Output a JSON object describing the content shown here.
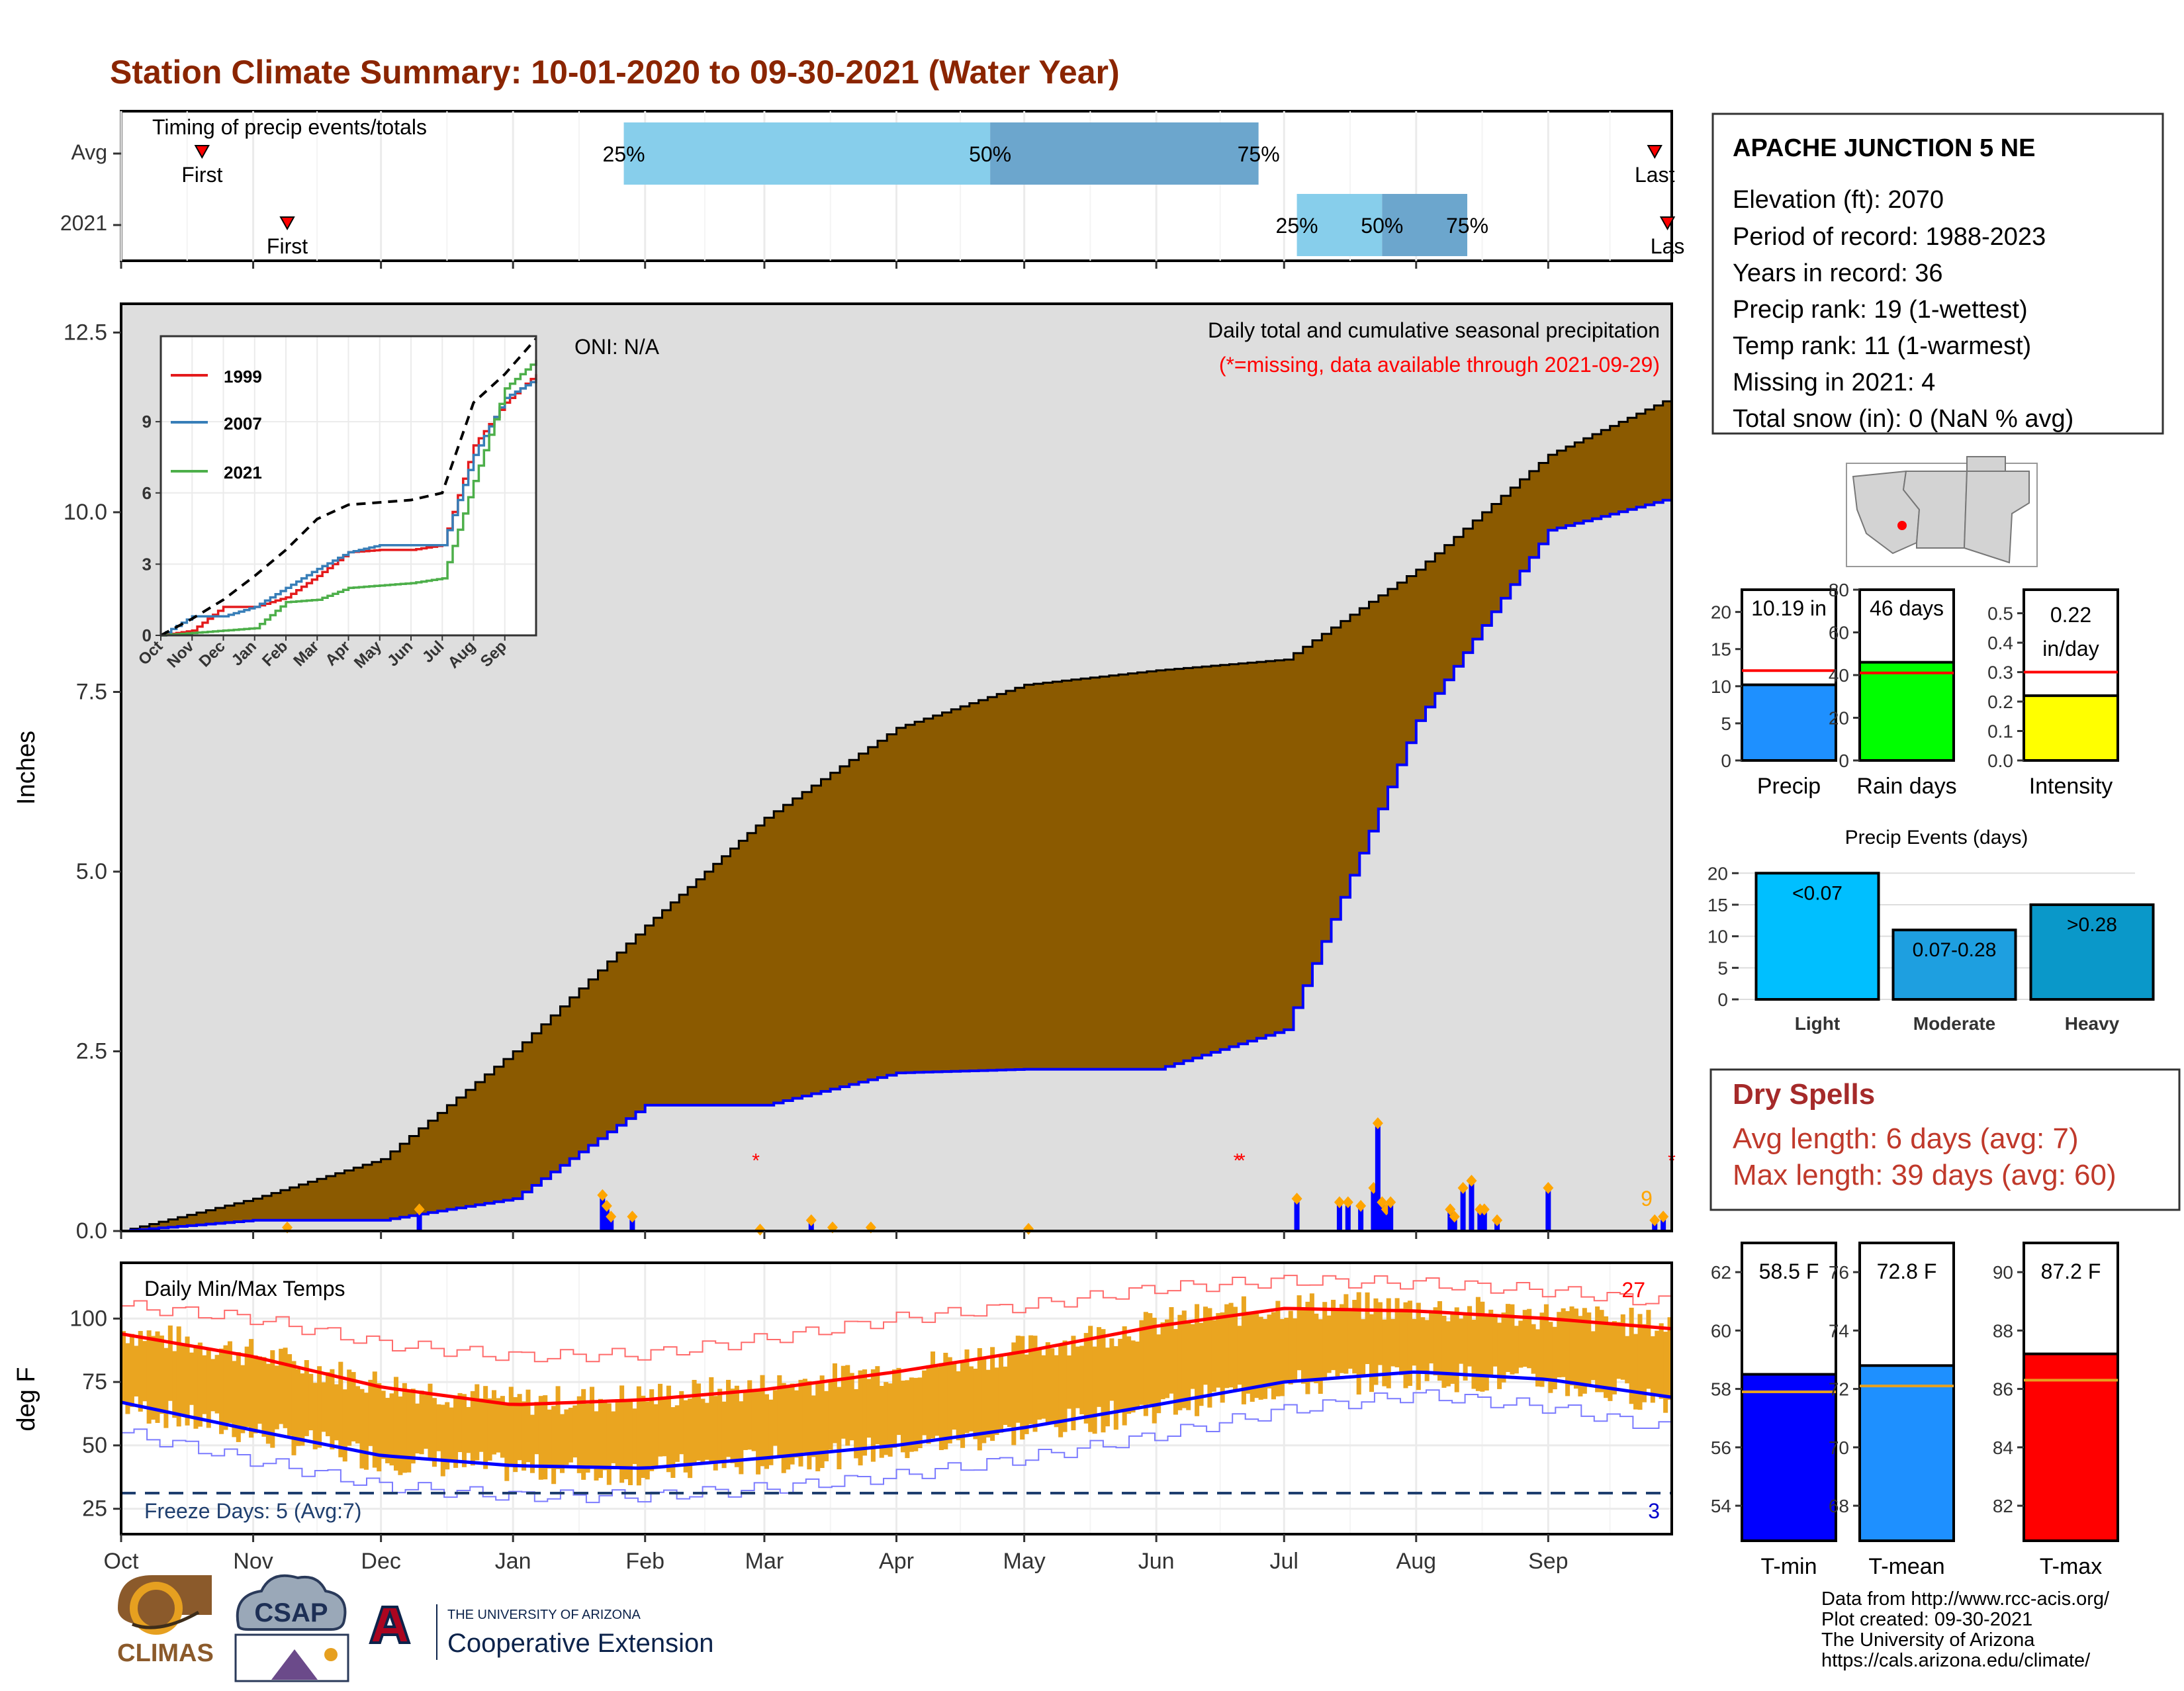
{
  "title": "Station Climate Summary: 10-01-2020 to 09-30-2021 (Water Year)",
  "timing": {
    "label": "Timing of precip events/totals",
    "rows": [
      {
        "name": "Avg",
        "first_label": "First",
        "last_label": "Last",
        "first": "2020-10-20",
        "last": "2021-09-26",
        "p25": "2021-01-27",
        "p50": "2021-04-23",
        "p75": "2021-06-25"
      },
      {
        "name": "2021",
        "first_label": "First",
        "last_label": "Las",
        "first": "2020-11-09",
        "last": "2021-09-29",
        "p25": "2021-07-04",
        "p50": "2021-07-24",
        "p75": "2021-08-13"
      }
    ],
    "pct_labels": [
      "25%",
      "50%",
      "75%"
    ]
  },
  "month_labels": [
    "Oct",
    "Nov",
    "Dec",
    "Jan",
    "Feb",
    "Mar",
    "Apr",
    "May",
    "Jun",
    "Jul",
    "Aug",
    "Sep"
  ],
  "precip_panel": {
    "ylabel": "Inches",
    "yticks": [
      "0.0",
      "2.5",
      "5.0",
      "7.5",
      "10.0",
      "12.5"
    ],
    "oni": "ONI: N/A",
    "legend_title": "Daily total and cumulative seasonal precipitation",
    "missing_note": "(*=missing, data available through 2021-09-29)",
    "count_label": "9"
  },
  "inset": {
    "yticks": [
      "0",
      "3",
      "6",
      "9"
    ],
    "xticks": [
      "Oct",
      "Nov",
      "Dec",
      "Jan",
      "Feb",
      "Mar",
      "Apr",
      "May",
      "Jun",
      "Jul",
      "Aug",
      "Sep"
    ],
    "legend": [
      {
        "name": "1999",
        "color": "#e41a1c"
      },
      {
        "name": "2007",
        "color": "#377eb8"
      },
      {
        "name": "2021",
        "color": "#4daf4a"
      }
    ]
  },
  "temp_panel": {
    "ylabel": "deg F",
    "title": "Daily Min/Max Temps",
    "yticks": [
      "25",
      "50",
      "75",
      "100"
    ],
    "max_count": "27",
    "min_count": "3",
    "freeze": "Freeze Days: 5 (Avg:7)"
  },
  "station": {
    "name": "APACHE JUNCTION 5 NE",
    "lines": [
      "Elevation (ft): 2070",
      "Period of record: 1988-2023",
      "Years in record: 36",
      "Precip rank: 19 (1-wettest)",
      "Temp rank: 11 (1-warmest)",
      "Missing in 2021: 4",
      "Total snow (in): 0 (NaN % avg)"
    ]
  },
  "bars_top": [
    {
      "label": "Precip",
      "value_text": "10.19 in",
      "value": 10.19,
      "avg": 12.1,
      "ymax": 23.0,
      "ticks": [
        "0",
        "5",
        "10",
        "15",
        "20"
      ],
      "tickvals": [
        0,
        5,
        10,
        15,
        20
      ],
      "color": "#1e90ff"
    },
    {
      "label": "Rain days",
      "value_text": "46 days",
      "value": 46,
      "avg": 41,
      "ymax": 80,
      "ticks": [
        "0",
        "20",
        "40",
        "60",
        "80"
      ],
      "tickvals": [
        0,
        20,
        40,
        60,
        80
      ],
      "color": "#00ff00"
    },
    {
      "label": "Intensity",
      "value_text": "0.22 in/day",
      "value": 0.22,
      "avg": 0.3,
      "ymax": 0.58,
      "ticks": [
        "0.0",
        "0.1",
        "0.2",
        "0.3",
        "0.4",
        "0.5"
      ],
      "tickvals": [
        0,
        0.1,
        0.2,
        0.3,
        0.4,
        0.5
      ],
      "color": "#ffff00"
    }
  ],
  "events": {
    "title": "Precip Events (days)",
    "ticks": [
      "0",
      "5",
      "10",
      "15",
      "20"
    ],
    "categories": [
      "Light",
      "Moderate",
      "Heavy"
    ],
    "bar_labels": [
      "<0.07",
      "0.07-0.28",
      ">0.28"
    ],
    "values": [
      20,
      11,
      15
    ],
    "colors": [
      "#00bfff",
      "#1e9fe0",
      "#0a98c9"
    ]
  },
  "dry_spells": {
    "title": "Dry Spells",
    "avg_length": "Avg length: 6 days (avg: 7)",
    "max_length": "Max length: 39 days (avg: 60)"
  },
  "bars_temp": [
    {
      "label": "T-min",
      "value_text": "58.5 F",
      "value": 58.5,
      "avg": 57.9,
      "ymin": 52.8,
      "ymax": 63.0,
      "ticks": [
        "54",
        "56",
        "58",
        "60",
        "62"
      ],
      "tickvals": [
        54,
        56,
        58,
        60,
        62
      ],
      "color": "#0000ff"
    },
    {
      "label": "T-mean",
      "value_text": "72.8 F",
      "value": 72.8,
      "avg": 72.1,
      "ymin": 66.8,
      "ymax": 77.0,
      "ticks": [
        "68",
        "70",
        "72",
        "74",
        "76"
      ],
      "tickvals": [
        68,
        70,
        72,
        74,
        76
      ],
      "color": "#1e90ff"
    },
    {
      "label": "T-max",
      "value_text": "87.2 F",
      "value": 87.2,
      "avg": 86.3,
      "ymin": 80.8,
      "ymax": 91.0,
      "ticks": [
        "82",
        "84",
        "86",
        "88",
        "90"
      ],
      "tickvals": [
        82,
        84,
        86,
        88,
        90
      ],
      "color": "#ff0000"
    }
  ],
  "footer": {
    "lines": [
      "Data from http://www.rcc-acis.org/",
      "Plot created: 09-30-2021",
      "The University of Arizona",
      "https://cals.arizona.edu/climate/"
    ],
    "climas": "CLIMAS",
    "csap": "CSAP",
    "ua_small": "THE UNIVERSITY OF ARIZONA",
    "ua_big": "Cooperative Extension"
  },
  "chart_data": [
    {
      "type": "area",
      "title": "Daily total and cumulative seasonal precipitation",
      "ylabel": "Inches",
      "ylim": [
        0,
        12.5
      ],
      "series": [
        {
          "name": "",
          "x": [
            "2020-10-01",
            "2020-11-01",
            "2020-12-01",
            "2021-01-01",
            "2021-02-01",
            "2021-03-01",
            "2021-04-01",
            "2021-05-01",
            "2021-06-01",
            "2021-07-01",
            "2021-08-01",
            "2021-09-01",
            "2021-09-30"
          ],
          "values": [
            0.0,
            0.45,
            1.0,
            2.5,
            4.25,
            5.75,
            7.0,
            7.6,
            7.8,
            7.95,
            9.2,
            10.8,
            11.6
          ]
        },
        {
          "name": "",
          "x": [
            "2020-10-01",
            "2020-11-01",
            "2020-12-01",
            "2021-01-01",
            "2021-02-01",
            "2021-03-01",
            "2021-04-01",
            "2021-05-01",
            "2021-06-01",
            "2021-07-01",
            "2021-08-01",
            "2021-09-01",
            "2021-09-30"
          ],
          "values": [
            0.0,
            0.15,
            0.15,
            0.45,
            1.75,
            1.75,
            2.2,
            2.25,
            2.25,
            2.8,
            7.1,
            9.75,
            10.2
          ]
        }
      ],
      "daily_events": [
        {
          "date": "2020-11-09",
          "value": 0.05
        },
        {
          "date": "2020-12-10",
          "value": 0.3
        },
        {
          "date": "2021-01-22",
          "value": 0.5
        },
        {
          "date": "2021-01-23",
          "value": 0.35
        },
        {
          "date": "2021-01-24",
          "value": 0.2
        },
        {
          "date": "2021-01-29",
          "value": 0.2
        },
        {
          "date": "2021-02-28",
          "value": 0.02
        },
        {
          "date": "2021-03-12",
          "value": 0.15
        },
        {
          "date": "2021-03-17",
          "value": 0.05
        },
        {
          "date": "2021-03-26",
          "value": 0.05
        },
        {
          "date": "2021-05-02",
          "value": 0.03
        },
        {
          "date": "2021-07-04",
          "value": 0.45
        },
        {
          "date": "2021-07-14",
          "value": 0.4
        },
        {
          "date": "2021-07-16",
          "value": 0.4
        },
        {
          "date": "2021-07-19",
          "value": 0.35
        },
        {
          "date": "2021-07-22",
          "value": 0.6
        },
        {
          "date": "2021-07-23",
          "value": 1.5
        },
        {
          "date": "2021-07-24",
          "value": 0.4
        },
        {
          "date": "2021-07-25",
          "value": 0.3
        },
        {
          "date": "2021-07-26",
          "value": 0.4
        },
        {
          "date": "2021-08-09",
          "value": 0.3
        },
        {
          "date": "2021-08-10",
          "value": 0.2
        },
        {
          "date": "2021-08-12",
          "value": 0.6
        },
        {
          "date": "2021-08-14",
          "value": 0.7
        },
        {
          "date": "2021-08-16",
          "value": 0.3
        },
        {
          "date": "2021-08-17",
          "value": 0.3
        },
        {
          "date": "2021-08-20",
          "value": 0.15
        },
        {
          "date": "2021-09-01",
          "value": 0.6
        },
        {
          "date": "2021-09-26",
          "value": 0.15
        },
        {
          "date": "2021-09-28",
          "value": 0.2
        }
      ],
      "missing_dates": [
        "2021-02-27",
        "2021-06-20",
        "2021-06-21",
        "2021-09-30"
      ]
    },
    {
      "type": "line",
      "title": "",
      "ylim": [
        0,
        12.5
      ],
      "x": [
        "Oct",
        "Nov",
        "Dec",
        "Jan",
        "Feb",
        "Mar",
        "Apr",
        "May",
        "Jun",
        "Jul",
        "Aug",
        "Sep",
        "end"
      ],
      "series": [
        {
          "name": "1999",
          "values": [
            0.0,
            0.2,
            1.2,
            1.2,
            1.6,
            2.5,
            3.5,
            3.6,
            3.6,
            3.8,
            8.0,
            9.8,
            11.0
          ]
        },
        {
          "name": "2007",
          "values": [
            0.0,
            0.8,
            0.8,
            1.2,
            2.0,
            2.8,
            3.5,
            3.8,
            3.8,
            3.8,
            7.6,
            10.0,
            10.8
          ]
        },
        {
          "name": "2021",
          "values": [
            0.0,
            0.1,
            0.2,
            0.3,
            1.4,
            1.5,
            2.0,
            2.1,
            2.2,
            2.4,
            6.5,
            10.4,
            11.6
          ]
        },
        {
          "name": "",
          "values": [
            0.0,
            0.7,
            1.5,
            2.5,
            3.6,
            4.9,
            5.5,
            5.6,
            5.7,
            6.0,
            9.8,
            11.0,
            12.5
          ]
        }
      ]
    },
    {
      "type": "line",
      "title": "Daily Min/Max Temps",
      "ylabel": "deg F",
      "ylim": [
        15,
        122
      ],
      "x": [
        "2020-10-01",
        "2020-11-01",
        "2020-12-01",
        "2021-01-01",
        "2021-02-01",
        "2021-03-01",
        "2021-04-01",
        "2021-05-01",
        "2021-06-01",
        "2021-07-01",
        "2021-08-01",
        "2021-09-01",
        "2021-09-30"
      ],
      "series": [
        {
          "name": "",
          "values": [
            94,
            85,
            73,
            66,
            68,
            72,
            79,
            87,
            97,
            104,
            103,
            100,
            96
          ]
        },
        {
          "name": "",
          "values": [
            67,
            56,
            46,
            42,
            41,
            45,
            50,
            57,
            66,
            75,
            79,
            76,
            69
          ]
        },
        {
          "name": "",
          "values": [
            105,
            100,
            90,
            85,
            86,
            92,
            100,
            105,
            112,
            115,
            114,
            111,
            106
          ]
        },
        {
          "name": "",
          "values": [
            55,
            44,
            34,
            30,
            30,
            33,
            38,
            45,
            54,
            64,
            70,
            65,
            56
          ]
        }
      ],
      "freeze_line": 32
    },
    {
      "type": "bar",
      "categories": [
        "Precip",
        "Rain days",
        "Intensity"
      ],
      "values": [
        10.19,
        46,
        0.22
      ]
    },
    {
      "type": "bar",
      "title": "Precip Events (days)",
      "categories": [
        "Light",
        "Moderate",
        "Heavy"
      ],
      "values": [
        20,
        11,
        15
      ]
    },
    {
      "type": "bar",
      "categories": [
        "T-min",
        "T-mean",
        "T-max"
      ],
      "values": [
        58.5,
        72.8,
        87.2
      ]
    }
  ]
}
